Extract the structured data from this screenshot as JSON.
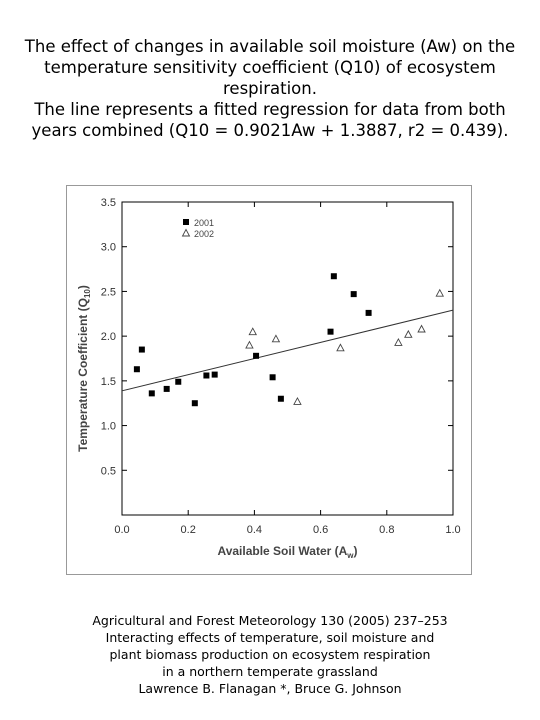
{
  "caption": {
    "lines": [
      "The effect of changes in available soil moisture (Aw) on the",
      "temperature sensitivity coefficient (Q10) of ecosystem",
      "respiration.",
      "The line represents a fitted regression for data from both",
      "years combined (Q10 = 0.9021Aw + 1.3887, r2 = 0.439)."
    ]
  },
  "source": {
    "lines": [
      "Agricultural and Forest Meteorology 130 (2005) 237–253",
      "Interacting effects of temperature, soil moisture and",
      "plant biomass production on ecosystem respiration",
      "in a northern temperate grassland",
      "Lawrence B. Flanagan *, Bruce G. Johnson"
    ]
  },
  "chart_data": {
    "type": "scatter",
    "xlabel": "Available Soil Water (A",
    "xlabel_sub": "w",
    "xlabel_end": ")",
    "ylabel": "Temperature Coefficient (Q",
    "ylabel_sub": "10",
    "ylabel_end": ")",
    "xlim": [
      0.0,
      1.0
    ],
    "ylim": [
      0.0,
      3.5
    ],
    "xticks": [
      {
        "value": 0.0,
        "label": "0.0"
      },
      {
        "value": 0.2,
        "label": "0.2"
      },
      {
        "value": 0.4,
        "label": "0.4"
      },
      {
        "value": 0.6,
        "label": "0.6"
      },
      {
        "value": 0.8,
        "label": "0.8"
      },
      {
        "value": 1.0,
        "label": "1.0"
      }
    ],
    "yticks": [
      {
        "value": 0.5,
        "label": "0.5"
      },
      {
        "value": 1.0,
        "label": "1.0"
      },
      {
        "value": 1.5,
        "label": "1.5"
      },
      {
        "value": 2.0,
        "label": "2.0"
      },
      {
        "value": 2.5,
        "label": "2.5"
      },
      {
        "value": 3.0,
        "label": "3.0"
      },
      {
        "value": 3.5,
        "label": "3.5"
      }
    ],
    "grid": false,
    "legend_position": "top-left",
    "series": [
      {
        "name": "2001",
        "marker": "filled-square",
        "points": [
          [
            0.045,
            1.63
          ],
          [
            0.06,
            1.85
          ],
          [
            0.09,
            1.36
          ],
          [
            0.135,
            1.41
          ],
          [
            0.17,
            1.49
          ],
          [
            0.22,
            1.25
          ],
          [
            0.255,
            1.56
          ],
          [
            0.28,
            1.57
          ],
          [
            0.405,
            1.78
          ],
          [
            0.455,
            1.54
          ],
          [
            0.48,
            1.3
          ],
          [
            0.63,
            2.05
          ],
          [
            0.64,
            2.67
          ],
          [
            0.7,
            2.47
          ],
          [
            0.745,
            2.26
          ]
        ]
      },
      {
        "name": "2002",
        "marker": "open-triangle",
        "points": [
          [
            0.385,
            1.9
          ],
          [
            0.395,
            2.05
          ],
          [
            0.465,
            1.97
          ],
          [
            0.53,
            1.27
          ],
          [
            0.66,
            1.87
          ],
          [
            0.835,
            1.93
          ],
          [
            0.865,
            2.02
          ],
          [
            0.905,
            2.08
          ],
          [
            0.96,
            2.48
          ]
        ]
      }
    ],
    "regression": {
      "slope": 0.9021,
      "intercept": 1.3887,
      "x_range": [
        0.0,
        1.0
      ]
    }
  }
}
